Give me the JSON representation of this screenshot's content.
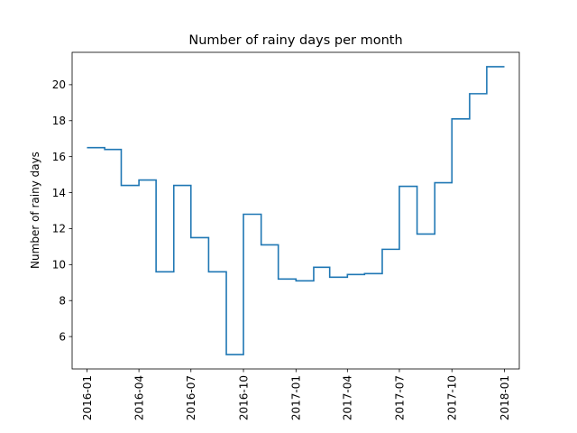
{
  "chart_data": {
    "type": "line",
    "step": "post",
    "title": "Number of rainy days per month",
    "xlabel": "",
    "ylabel": "Number of rainy days",
    "x": [
      "2016-01",
      "2016-02",
      "2016-03",
      "2016-04",
      "2016-05",
      "2016-06",
      "2016-07",
      "2016-08",
      "2016-09",
      "2016-10",
      "2016-11",
      "2016-12",
      "2017-01",
      "2017-02",
      "2017-03",
      "2017-04",
      "2017-05",
      "2017-06",
      "2017-07",
      "2017-08",
      "2017-09",
      "2017-10",
      "2017-11",
      "2017-12",
      "2018-01"
    ],
    "series": [
      {
        "name": "",
        "color": "#1f77b4",
        "values": [
          16.5,
          16.4,
          14.4,
          14.7,
          9.6,
          14.4,
          11.5,
          9.6,
          5.0,
          12.8,
          11.1,
          9.2,
          9.1,
          9.85,
          9.3,
          9.45,
          9.5,
          10.85,
          14.35,
          11.7,
          14.55,
          18.1,
          19.5,
          21.0,
          21.0
        ]
      }
    ],
    "xticks": [
      "2016-01",
      "2016-04",
      "2016-07",
      "2016-10",
      "2017-01",
      "2017-04",
      "2017-07",
      "2017-10",
      "2018-01"
    ],
    "yticks": [
      6,
      8,
      10,
      12,
      14,
      16,
      18,
      20
    ],
    "ylim": [
      4.2,
      21.8
    ],
    "xlim": [
      "2015-12-06",
      "2018-01-27"
    ],
    "grid": false,
    "legend": "none"
  }
}
